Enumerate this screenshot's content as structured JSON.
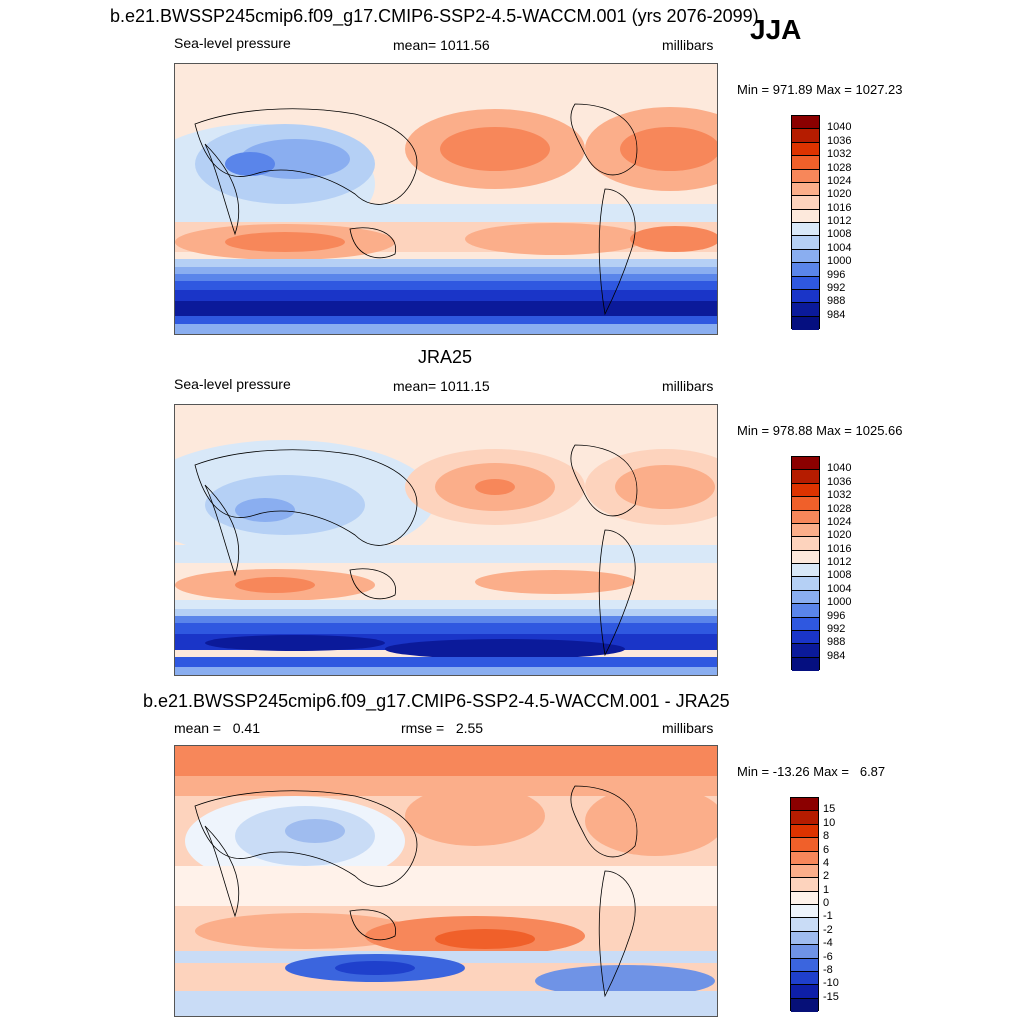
{
  "season": "JJA",
  "panels": [
    {
      "title": "b.e21.BWSSP245cmip6.f09_g17.CMIP6-SSP2-4.5-WACCM.001 (yrs 2076-2099)",
      "left_label": "Sea-level pressure",
      "center_label": "mean= 1011.56",
      "right_label": "millibars",
      "minmax": "Min = 971.89 Max = 1027.23",
      "colorbar_labels": [
        "1040",
        "1036",
        "1032",
        "1028",
        "1024",
        "1020",
        "1016",
        "1012",
        "1008",
        "1004",
        "1000",
        "996",
        "992",
        "988",
        "984"
      ]
    },
    {
      "title": "JRA25",
      "left_label": "Sea-level pressure",
      "center_label": "mean= 1011.15",
      "right_label": "millibars",
      "minmax": "Min = 978.88 Max = 1025.66",
      "colorbar_labels": [
        "1040",
        "1036",
        "1032",
        "1028",
        "1024",
        "1020",
        "1016",
        "1012",
        "1008",
        "1004",
        "1000",
        "996",
        "992",
        "988",
        "984"
      ]
    },
    {
      "title": "b.e21.BWSSP245cmip6.f09_g17.CMIP6-SSP2-4.5-WACCM.001 - JRA25",
      "left_label": "mean =   0.41",
      "center_label": "rmse =   2.55",
      "right_label": "millibars",
      "minmax": "Min = -13.26 Max =   6.87",
      "colorbar_labels": [
        "15",
        "10",
        "8",
        "6",
        "4",
        "2",
        "1",
        "0",
        "-1",
        "-2",
        "-4",
        "-6",
        "-8",
        "-10",
        "-15"
      ]
    }
  ],
  "colors": {
    "abs_scale": [
      "#8b0000",
      "#b51c00",
      "#dd3300",
      "#f0602a",
      "#f7875a",
      "#fbae8a",
      "#fdd3bd",
      "#fde9dc",
      "#d8e8f8",
      "#b5d0f5",
      "#8aaef0",
      "#5a85ea",
      "#2f58e0",
      "#1a35c8",
      "#0b1a9a",
      "#050f80"
    ],
    "diff_scale": [
      "#8b0000",
      "#b51c00",
      "#dd3300",
      "#f0602a",
      "#f7875a",
      "#fbae8a",
      "#fdd3bd",
      "#fff2ea",
      "#eef4fc",
      "#c9dcf6",
      "#9fbcef",
      "#6f93e6",
      "#3b65de",
      "#1f40cc",
      "#0e1fa8",
      "#061078"
    ]
  }
}
